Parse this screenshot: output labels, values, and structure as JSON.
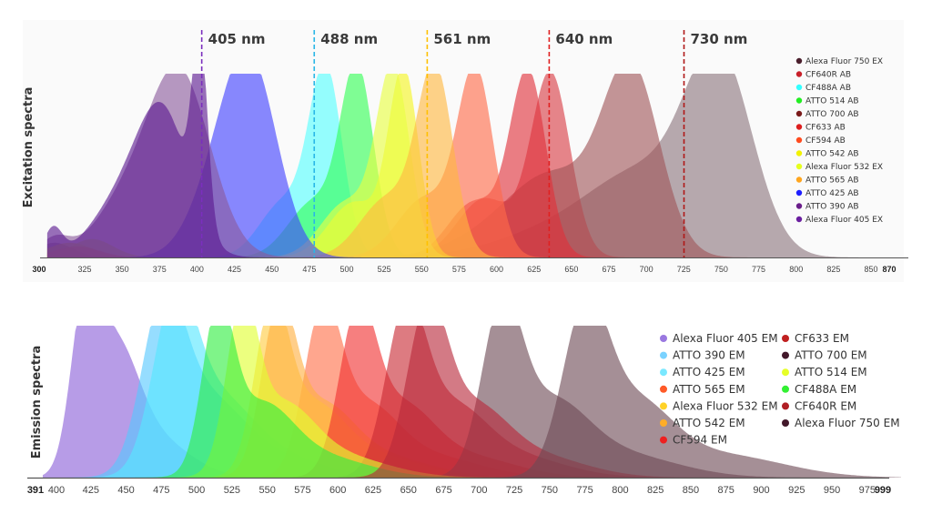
{
  "chart_data": [
    {
      "type": "area",
      "ylabel": "Excitation spectra",
      "xlim": [
        300,
        870
      ],
      "ylim": [
        0,
        1
      ],
      "x_ticks": [
        300,
        325,
        350,
        375,
        400,
        425,
        450,
        475,
        500,
        525,
        550,
        575,
        600,
        625,
        650,
        675,
        700,
        725,
        750,
        775,
        800,
        825,
        850,
        870
      ],
      "x_ticks_bold": [
        300,
        870
      ],
      "grid": false,
      "legend_placement": "right",
      "laser_lines": [
        {
          "label": "405 nm",
          "nm": 405,
          "color": "#7b2fbe"
        },
        {
          "label": "488 nm",
          "nm": 488,
          "color": "#29b6e6"
        },
        {
          "label": "561 nm",
          "nm": 561,
          "color": "#ffc000"
        },
        {
          "label": "640 nm",
          "nm": 640,
          "color": "#e02020"
        },
        {
          "label": "730 nm",
          "nm": 730,
          "color": "#b01818"
        }
      ],
      "series": [
        {
          "name": "Alexa Fluor 750 EX",
          "color": "#4a1e2c",
          "fill": "#8c767e",
          "bands": [
            [
              749,
              1,
              22
            ],
            [
              700,
              0.42,
              35
            ],
            [
              640,
              0.14,
              40
            ],
            [
              305,
              0.08,
              12
            ]
          ]
        },
        {
          "name": "CF640R AB",
          "color": "#c8202a",
          "fill": "#d83c44",
          "bands": [
            [
              636,
              1,
              13
            ],
            [
              592,
              0.32,
              18
            ]
          ]
        },
        {
          "name": "CF488A AB",
          "color": "#33ffff",
          "fill": "#55ffff",
          "bands": [
            [
              486,
              1,
              11
            ],
            [
              458,
              0.3,
              16
            ]
          ]
        },
        {
          "name": "ATTO 514 AB",
          "color": "#22ee22",
          "fill": "#33ff55",
          "bands": [
            [
              507,
              1,
              11
            ],
            [
              478,
              0.3,
              17
            ]
          ]
        },
        {
          "name": "ATTO 700 AB",
          "color": "#7a1a1a",
          "fill": "#a05558",
          "bands": [
            [
              690,
              1,
              19
            ],
            [
              640,
              0.4,
              28
            ],
            [
              600,
              0.12,
              30
            ]
          ]
        },
        {
          "name": "CF633 AB",
          "color": "#dd1e1e",
          "fill": "#e0303a",
          "bands": [
            [
              621,
              1,
              12
            ],
            [
              585,
              0.3,
              17
            ]
          ]
        },
        {
          "name": "CF594 AB",
          "color": "#ff4a1e",
          "fill": "#ff6a48",
          "bands": [
            [
              586,
              1,
              12
            ],
            [
              552,
              0.32,
              18
            ]
          ]
        },
        {
          "name": "ATTO 542 AB",
          "color": "#f2f200",
          "fill": "#f5f520",
          "bands": [
            [
              538,
              1,
              10
            ],
            [
              505,
              0.3,
              17
            ],
            [
              315,
              0.08,
              15
            ]
          ]
        },
        {
          "name": "Alexa Fluor 532 EX",
          "color": "#e6ff1e",
          "fill": "#e8ff40",
          "bands": [
            [
              531,
              1,
              11
            ],
            [
              500,
              0.3,
              17
            ],
            [
              330,
              0.1,
              14
            ]
          ]
        },
        {
          "name": "ATTO 565 AB",
          "color": "#ffa51e",
          "fill": "#ffb840",
          "bands": [
            [
              559,
              1,
              12
            ],
            [
              527,
              0.32,
              18
            ],
            [
              320,
              0.06,
              15
            ]
          ]
        },
        {
          "name": "ATTO 425 AB",
          "color": "#1e1eff",
          "fill": "#4040ff",
          "bands": [
            [
              436,
              1,
              18
            ],
            [
              412,
              0.3,
              18
            ]
          ]
        },
        {
          "name": "ATTO 390 AB",
          "color": "#6a1e8a",
          "fill": "#8a5a9c",
          "bands": [
            [
              388,
              1,
              21
            ],
            [
              350,
              0.25,
              20
            ],
            [
              305,
              0.1,
              10
            ]
          ]
        },
        {
          "name": "Alexa Fluor 405 EX",
          "color": "#6a1ea0",
          "fill": "#5a1890",
          "bands": [
            [
              402,
              1,
              5
            ],
            [
              378,
              0.72,
              17
            ],
            [
              350,
              0.3,
              20
            ],
            [
              304,
              0.15,
              6
            ]
          ]
        }
      ]
    },
    {
      "type": "area",
      "ylabel": "Emission spectra",
      "xlim": [
        391,
        999
      ],
      "ylim": [
        0,
        1
      ],
      "x_ticks": [
        391,
        400,
        425,
        450,
        475,
        500,
        525,
        550,
        575,
        600,
        625,
        650,
        675,
        700,
        725,
        750,
        775,
        800,
        825,
        850,
        875,
        900,
        925,
        950,
        975,
        999
      ],
      "x_ticks_bold": [
        391,
        999
      ],
      "grid": false,
      "legend_placement": "right",
      "series": [
        {
          "name": "Alexa Fluor 405 EM",
          "color": "#9a78e0",
          "fill": "#8a60d8",
          "bands": [
            [
              421,
              1,
              10
            ],
            [
              442,
              0.75,
              16
            ],
            [
              470,
              0.25,
              25
            ]
          ]
        },
        {
          "name": "ATTO 390 EM",
          "color": "#7ad2ff",
          "fill": "#55c8ff",
          "bands": [
            [
              476,
              1,
              15
            ],
            [
              505,
              0.45,
              25
            ],
            [
              545,
              0.15,
              35
            ]
          ]
        },
        {
          "name": "ATTO 425 EM",
          "color": "#7ae8ff",
          "fill": "#55e6ff",
          "bands": [
            [
              484,
              1,
              15
            ],
            [
              512,
              0.45,
              25
            ],
            [
              550,
              0.15,
              35
            ]
          ]
        },
        {
          "name": "ATTO 565 EM",
          "color": "#ff5a28",
          "fill": "#ff7048",
          "bands": [
            [
              589,
              1,
              13
            ],
            [
              620,
              0.42,
              22
            ],
            [
              665,
              0.14,
              35
            ]
          ]
        },
        {
          "name": "Alexa Fluor 532 EM",
          "color": "#ffd228",
          "fill": "#ffcc40",
          "bands": [
            [
              553,
              1,
              12
            ],
            [
              582,
              0.42,
              22
            ],
            [
              625,
              0.14,
              35
            ]
          ]
        },
        {
          "name": "ATTO 542 EM",
          "color": "#ffad28",
          "fill": "#ffb040",
          "bands": [
            [
              558,
              1,
              12
            ],
            [
              588,
              0.42,
              22
            ],
            [
              630,
              0.14,
              35
            ]
          ]
        },
        {
          "name": "CF594 EM",
          "color": "#ee2020",
          "fill": "#f03030",
          "bands": [
            [
              614,
              1,
              13
            ],
            [
              645,
              0.42,
              22
            ],
            [
              690,
              0.14,
              35
            ]
          ]
        },
        {
          "name": "CF633 EM",
          "color": "#c02020",
          "fill": "#c82a34",
          "bands": [
            [
              648,
              1,
              14
            ],
            [
              680,
              0.42,
              24
            ],
            [
              725,
              0.14,
              35
            ]
          ]
        },
        {
          "name": "ATTO 700 EM",
          "color": "#42182a",
          "fill": "#6e4a56",
          "bands": [
            [
              716,
              1,
              14
            ],
            [
              750,
              0.45,
              26
            ],
            [
              800,
              0.15,
              40
            ]
          ]
        },
        {
          "name": "ATTO 514 EM",
          "color": "#e6ff28",
          "fill": "#e0ff30",
          "bands": [
            [
              532,
              1,
              11
            ],
            [
              560,
              0.42,
              22
            ],
            [
              600,
              0.14,
              35
            ]
          ]
        },
        {
          "name": "CF488A EM",
          "color": "#33f033",
          "fill": "#30ee40",
          "bands": [
            [
              515,
              1,
              11
            ],
            [
              545,
              0.42,
              22
            ],
            [
              585,
              0.14,
              35
            ]
          ]
        },
        {
          "name": "CF640R EM",
          "color": "#b01e24",
          "fill": "#b8283a",
          "bands": [
            [
              663,
              1,
              14
            ],
            [
              695,
              0.42,
              24
            ],
            [
              740,
              0.14,
              35
            ]
          ]
        },
        {
          "name": "Alexa Fluor 750 EM",
          "color": "#42182a",
          "fill": "#6e4a56",
          "bands": [
            [
              775,
              1,
              16
            ],
            [
              810,
              0.45,
              26
            ],
            [
              870,
              0.15,
              45
            ]
          ]
        }
      ]
    }
  ]
}
